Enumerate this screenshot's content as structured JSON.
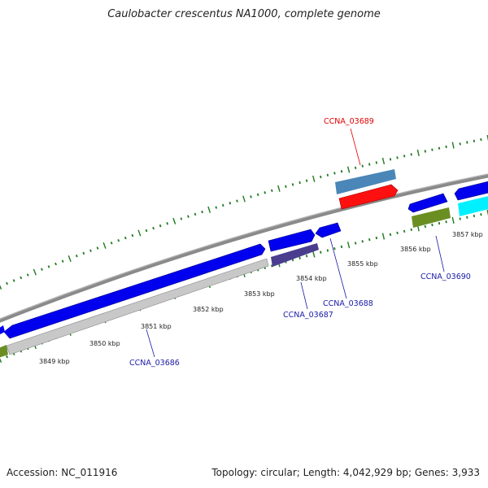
{
  "title": "Caulobacter crescentus NA1000, complete genome",
  "footer": {
    "accession": "Accession: NC_011916",
    "summary": "Topology: circular; Length: 4,042,929 bp; Genes: 3,933"
  },
  "tick_labels": [
    "3849 kbp",
    "3850 kbp",
    "3851 kbp",
    "3852 kbp",
    "3853 kbp",
    "3854 kbp",
    "3855 kbp",
    "3856 kbp",
    "3857 kbp"
  ],
  "gene_labels": [
    {
      "name": "CCNA_03689",
      "color": "#e00000"
    },
    {
      "name": "CCNA_03686",
      "color": "#1a1aa6"
    },
    {
      "name": "CCNA_03687",
      "color": "#1a1aa6"
    },
    {
      "name": "CCNA_03688",
      "color": "#1a1aa6"
    },
    {
      "name": "CCNA_03690",
      "color": "#1a1aa6"
    }
  ],
  "colors": {
    "backbone": "#8a8a8a",
    "tick": "#1e7a1e",
    "cds_forward": "#0000ee",
    "cds_reverse_grey": "#c8c8c8",
    "cds_dark": "#4a3d8f",
    "cds_steel": "#4a86b8",
    "cds_red": "#ff1010",
    "cds_cyan": "#00f0ff",
    "cds_olive": "#6b8e23"
  }
}
